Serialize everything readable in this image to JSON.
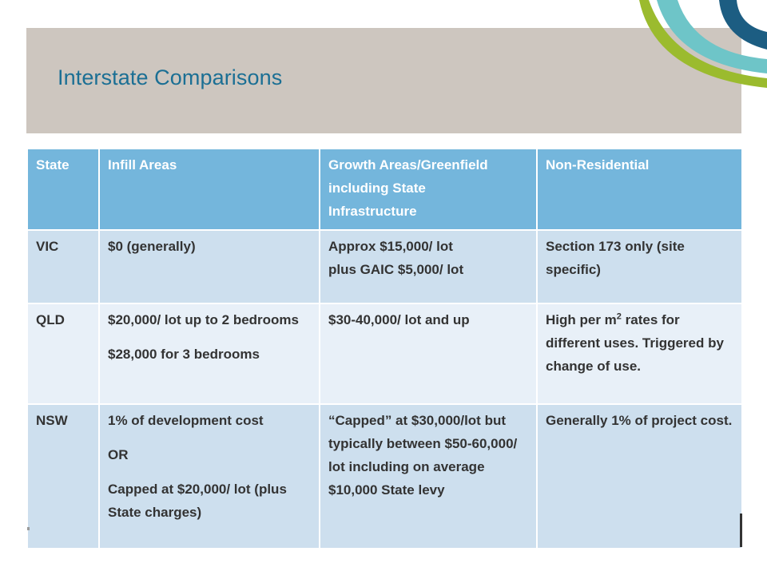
{
  "slide": {
    "title": "Interstate Comparisons"
  },
  "colors": {
    "header_band": "#cdc6bf",
    "title": "#1b6f94",
    "table_header": "#74b6dc",
    "row_dark": "#cddfee",
    "row_light": "#e8f0f8",
    "swoosh_green": "#9bbb2e",
    "swoosh_teal": "#6ec5c8",
    "swoosh_navy": "#1c5d82"
  },
  "table": {
    "headers": {
      "state": "State",
      "infill": "Infill Areas",
      "growth_line1": "Growth Areas/Greenfield",
      "growth_line2": "including State",
      "growth_line3": "Infrastructure",
      "nonres": "Non-Residential"
    },
    "vic": {
      "state": "VIC",
      "infill": "$0 (generally)",
      "growth_line1": "Approx $15,000/ lot",
      "growth_line2": "plus GAIC $5,000/ lot",
      "nonres": "Section 173 only (site specific)"
    },
    "qld": {
      "state": "QLD",
      "infill_a": "$20,000/ lot up to 2 bedrooms",
      "infill_b": "$28,000 for 3 bedrooms",
      "growth": "$30-40,000/ lot and up",
      "nonres_pre": "High per m",
      "nonres_sup": "2",
      "nonres_post": " rates for different uses. Triggered by change of use."
    },
    "nsw": {
      "state": "NSW",
      "infill_a": "1% of development cost",
      "infill_b": "OR",
      "infill_c": "Capped at $20,000/ lot (plus State charges)",
      "growth": "“Capped” at $30,000/lot but typically between $50-60,000/ lot including on average  $10,000 State levy",
      "nonres": "Generally 1% of project cost."
    }
  }
}
